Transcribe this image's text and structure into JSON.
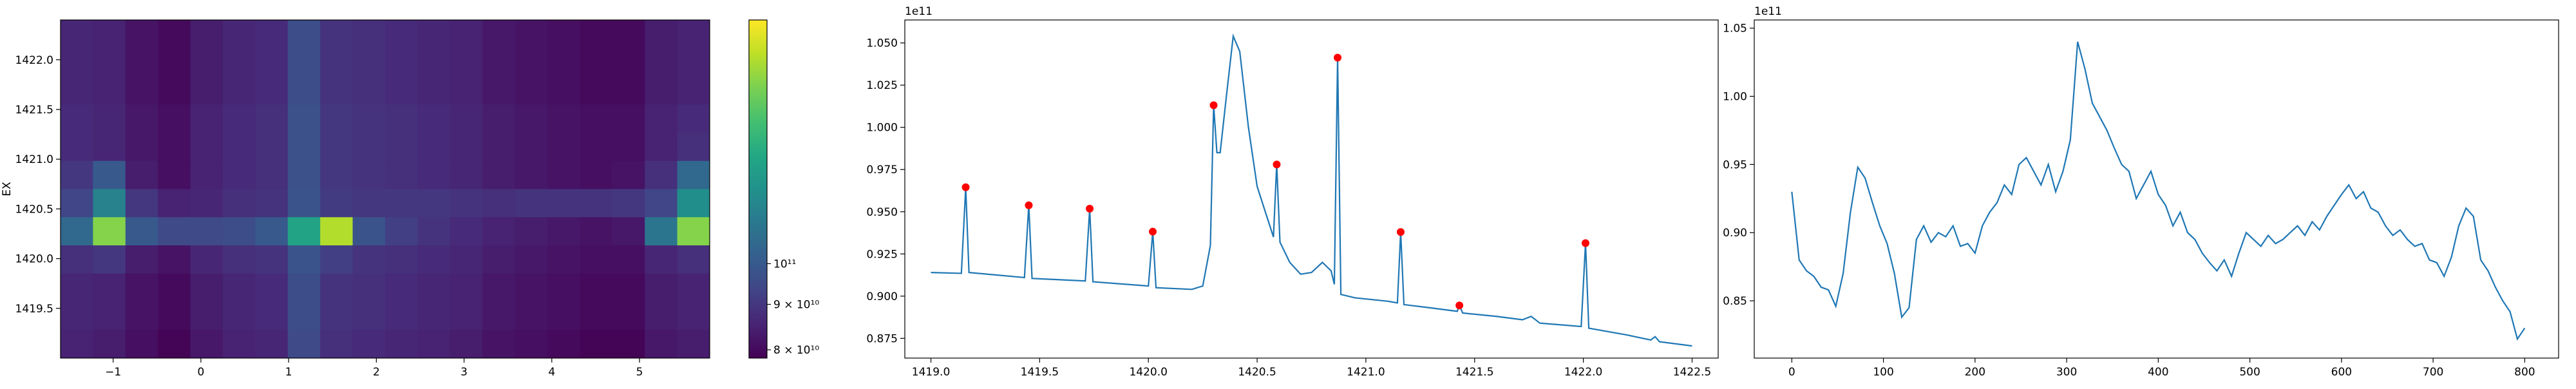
{
  "chart_data": [
    {
      "type": "heatmap",
      "ylabel": "EX",
      "xlim": [
        -1.6,
        5.8
      ],
      "ylim": [
        1419.0,
        1422.4
      ],
      "xticks": [
        {
          "value": -1,
          "label": "−1"
        },
        0,
        1,
        2,
        3,
        4,
        5
      ],
      "yticks": [
        1419.5,
        {
          "value": 1420,
          "label": "1420.0"
        },
        1420.5,
        {
          "value": 1421,
          "label": "1421.0"
        },
        1421.5,
        {
          "value": 1422,
          "label": "1422.0"
        }
      ],
      "z": [
        [
          86000000000.0,
          85000000000.0,
          82000000000.0,
          80000000000.0,
          84000000000.0,
          86000000000.0,
          87000000000.0,
          96000000000.0,
          89000000000.0,
          88000000000.0,
          87000000000.0,
          86000000000.0,
          85000000000.0,
          83000000000.0,
          82000000000.0,
          81000000000.0,
          80000000000.0,
          80000000000.0,
          84000000000.0,
          85000000000.0
        ],
        [
          86000000000.0,
          85000000000.0,
          82000000000.0,
          80000000000.0,
          84000000000.0,
          86000000000.0,
          87000000000.0,
          96000000000.0,
          89000000000.0,
          88000000000.0,
          87000000000.0,
          86000000000.0,
          85000000000.0,
          83000000000.0,
          82000000000.0,
          81000000000.0,
          80000000000.0,
          80000000000.0,
          84000000000.0,
          85000000000.0
        ],
        [
          86000000000.0,
          85000000000.0,
          82000000000.0,
          80000000000.0,
          84000000000.0,
          86000000000.0,
          87000000000.0,
          96000000000.0,
          89000000000.0,
          88000000000.0,
          87000000000.0,
          86000000000.0,
          85000000000.0,
          83000000000.0,
          82000000000.0,
          81000000000.0,
          80000000000.0,
          80000000000.0,
          84000000000.0,
          85000000000.0
        ],
        [
          87000000000.0,
          86000000000.0,
          83000000000.0,
          81000000000.0,
          85000000000.0,
          87000000000.0,
          88000000000.0,
          97000000000.0,
          90000000000.0,
          89000000000.0,
          88000000000.0,
          87000000000.0,
          86000000000.0,
          84000000000.0,
          83000000000.0,
          82000000000.0,
          81000000000.0,
          81000000000.0,
          85000000000.0,
          87000000000.0
        ],
        [
          87000000000.0,
          86000000000.0,
          83000000000.0,
          81000000000.0,
          85000000000.0,
          87000000000.0,
          88000000000.0,
          97000000000.0,
          90000000000.0,
          89000000000.0,
          88000000000.0,
          87000000000.0,
          86000000000.0,
          84000000000.0,
          83000000000.0,
          82000000000.0,
          81000000000.0,
          81000000000.0,
          85000000000.0,
          88000000000.0
        ],
        [
          90000000000.0,
          100000000000.0,
          84000000000.0,
          81000000000.0,
          85000000000.0,
          87000000000.0,
          88000000000.0,
          97000000000.0,
          90000000000.0,
          89000000000.0,
          88000000000.0,
          87000000000.0,
          86000000000.0,
          84000000000.0,
          83000000000.0,
          82000000000.0,
          81000000000.0,
          82000000000.0,
          88000000000.0,
          105000000000.0
        ],
        [
          94000000000.0,
          115000000000.0,
          90000000000.0,
          85000000000.0,
          86000000000.0,
          88000000000.0,
          89000000000.0,
          98000000000.0,
          91000000000.0,
          90000000000.0,
          90000000000.0,
          90000000000.0,
          89000000000.0,
          88000000000.0,
          89000000000.0,
          89000000000.0,
          89000000000.0,
          90000000000.0,
          94000000000.0,
          120000000000.0
        ],
        [
          105000000000.0,
          160000000000.0,
          100000000000.0,
          95000000000.0,
          95000000000.0,
          96000000000.0,
          100000000000.0,
          130000000000.0,
          170000000000.0,
          98000000000.0,
          92000000000.0,
          89000000000.0,
          87000000000.0,
          85000000000.0,
          84000000000.0,
          83000000000.0,
          82000000000.0,
          83000000000.0,
          110000000000.0,
          160000000000.0
        ],
        [
          88000000000.0,
          90000000000.0,
          84000000000.0,
          82000000000.0,
          86000000000.0,
          88000000000.0,
          89000000000.0,
          98000000000.0,
          92000000000.0,
          89000000000.0,
          88000000000.0,
          87000000000.0,
          86000000000.0,
          84000000000.0,
          83000000000.0,
          82000000000.0,
          81000000000.0,
          81000000000.0,
          86000000000.0,
          88000000000.0
        ],
        [
          86000000000.0,
          85000000000.0,
          82000000000.0,
          80000000000.0,
          84000000000.0,
          86000000000.0,
          87000000000.0,
          96000000000.0,
          89000000000.0,
          88000000000.0,
          87000000000.0,
          86000000000.0,
          85000000000.0,
          83000000000.0,
          82000000000.0,
          81000000000.0,
          80000000000.0,
          80000000000.0,
          84000000000.0,
          85000000000.0
        ],
        [
          86000000000.0,
          85000000000.0,
          82000000000.0,
          80000000000.0,
          84000000000.0,
          86000000000.0,
          87000000000.0,
          96000000000.0,
          89000000000.0,
          88000000000.0,
          87000000000.0,
          86000000000.0,
          85000000000.0,
          83000000000.0,
          82000000000.0,
          81000000000.0,
          80000000000.0,
          80000000000.0,
          84000000000.0,
          85000000000.0
        ],
        [
          85000000000.0,
          84000000000.0,
          81000000000.0,
          79000000000.0,
          83000000000.0,
          85000000000.0,
          86000000000.0,
          95000000000.0,
          88000000000.0,
          87000000000.0,
          86000000000.0,
          85000000000.0,
          84000000000.0,
          82000000000.0,
          81000000000.0,
          80000000000.0,
          79000000000.0,
          79000000000.0,
          83000000000.0,
          84000000000.0
        ]
      ],
      "colorbar": {
        "scale": "log",
        "colormap": "viridis",
        "clim": [
          78300000000.0,
          188000000000.0
        ],
        "ticks": [
          {
            "value": 80000000000.0,
            "label": "8 × 10¹⁰"
          },
          {
            "value": 90000000000.0,
            "label": "9 × 10¹⁰"
          },
          {
            "value": 100000000000.0,
            "label": "10¹¹"
          }
        ]
      }
    },
    {
      "type": "line",
      "offset_text": "1e11",
      "xlim": [
        1418.88,
        1422.62
      ],
      "ylim": [
        0.8633,
        1.0636
      ],
      "xticks": [
        {
          "value": 1419,
          "label": "1419.0"
        },
        1419.5,
        {
          "value": 1420,
          "label": "1420.0"
        },
        1420.5,
        {
          "value": 1421,
          "label": "1421.0"
        },
        1421.5,
        {
          "value": 1422,
          "label": "1422.0"
        },
        1422.5
      ],
      "yticks": [
        0.875,
        {
          "value": 0.9,
          "label": "0.900"
        },
        0.925,
        {
          "value": 0.95,
          "label": "0.950"
        },
        0.975,
        {
          "value": 1,
          "label": "1.000"
        },
        1.025,
        {
          "value": 1.05,
          "label": "1.050"
        }
      ],
      "series": [
        {
          "color": "#1f77b4",
          "style": "line",
          "x": [
            1419.0,
            1419.14,
            1419.16,
            1419.175,
            1419.43,
            1419.45,
            1419.465,
            1419.71,
            1419.73,
            1419.745,
            1420.0,
            1420.02,
            1420.035,
            1420.2,
            1420.25,
            1420.285,
            1420.3,
            1420.315,
            1420.33,
            1420.36,
            1420.39,
            1420.42,
            1420.46,
            1420.5,
            1420.55,
            1420.575,
            1420.59,
            1420.605,
            1420.65,
            1420.7,
            1420.75,
            1420.8,
            1420.84,
            1420.855,
            1420.87,
            1420.885,
            1420.95,
            1421.1,
            1421.145,
            1421.16,
            1421.175,
            1421.3,
            1421.42,
            1421.43,
            1421.445,
            1421.6,
            1421.72,
            1421.76,
            1421.8,
            1421.99,
            1422.01,
            1422.025,
            1422.2,
            1422.31,
            1422.33,
            1422.35,
            1422.5
          ],
          "values": [
            0.914,
            0.9135,
            0.9645,
            0.914,
            0.911,
            0.9538,
            0.9105,
            0.909,
            0.9518,
            0.9085,
            0.906,
            0.9382,
            0.905,
            0.904,
            0.906,
            0.93,
            1.0131,
            0.985,
            0.985,
            1.02,
            1.054,
            1.045,
            1.0,
            0.965,
            0.945,
            0.935,
            0.978,
            0.932,
            0.92,
            0.913,
            0.914,
            0.92,
            0.915,
            0.907,
            1.0413,
            0.901,
            0.899,
            0.897,
            0.896,
            0.938,
            0.895,
            0.893,
            0.891,
            0.8945,
            0.89,
            0.888,
            0.886,
            0.888,
            0.884,
            0.882,
            0.9314,
            0.881,
            0.877,
            0.874,
            0.876,
            0.873,
            0.8705
          ]
        },
        {
          "color": "red",
          "style": "markers",
          "x": [
            1419.16,
            1419.45,
            1419.73,
            1420.02,
            1420.3,
            1420.59,
            1420.87,
            1421.16,
            1421.43,
            1422.01
          ],
          "values": [
            0.9645,
            0.9538,
            0.9518,
            0.9382,
            1.0131,
            0.978,
            1.0413,
            0.938,
            0.8945,
            0.9314
          ]
        }
      ]
    },
    {
      "type": "line",
      "offset_text": "1e11",
      "xlim": [
        -41,
        837
      ],
      "ylim": [
        0.808,
        1.056
      ],
      "xticks": [
        0,
        100,
        200,
        300,
        400,
        500,
        600,
        700,
        800
      ],
      "yticks": [
        0.85,
        {
          "value": 0.9,
          "label": "0.90"
        },
        0.95,
        {
          "value": 1,
          "label": "1.00"
        },
        1.05
      ],
      "series": [
        {
          "color": "#1f77b4",
          "style": "line",
          "x": [
            0,
            8,
            16,
            24,
            32,
            40,
            48,
            56,
            64,
            72,
            80,
            88,
            96,
            104,
            112,
            120,
            128,
            136,
            144,
            152,
            160,
            168,
            176,
            184,
            192,
            200,
            208,
            216,
            224,
            232,
            240,
            248,
            256,
            264,
            272,
            280,
            288,
            296,
            304,
            312,
            320,
            328,
            336,
            344,
            352,
            360,
            368,
            376,
            384,
            392,
            400,
            408,
            416,
            424,
            432,
            440,
            448,
            456,
            464,
            472,
            480,
            488,
            496,
            504,
            512,
            520,
            528,
            536,
            544,
            552,
            560,
            568,
            576,
            584,
            592,
            600,
            608,
            616,
            624,
            632,
            640,
            648,
            656,
            664,
            672,
            680,
            688,
            696,
            704,
            712,
            720,
            728,
            736,
            744,
            752,
            760,
            768,
            776,
            784,
            792,
            800
          ],
          "values": [
            0.93,
            0.88,
            0.872,
            0.868,
            0.86,
            0.858,
            0.846,
            0.87,
            0.915,
            0.948,
            0.94,
            0.922,
            0.905,
            0.892,
            0.87,
            0.838,
            0.845,
            0.895,
            0.905,
            0.893,
            0.9,
            0.897,
            0.905,
            0.89,
            0.892,
            0.885,
            0.905,
            0.915,
            0.922,
            0.935,
            0.928,
            0.95,
            0.955,
            0.945,
            0.935,
            0.95,
            0.93,
            0.945,
            0.968,
            1.04,
            1.02,
            0.995,
            0.985,
            0.975,
            0.962,
            0.95,
            0.945,
            0.925,
            0.935,
            0.945,
            0.928,
            0.92,
            0.905,
            0.915,
            0.9,
            0.895,
            0.885,
            0.878,
            0.872,
            0.88,
            0.868,
            0.885,
            0.9,
            0.895,
            0.89,
            0.898,
            0.892,
            0.895,
            0.9,
            0.905,
            0.898,
            0.908,
            0.902,
            0.912,
            0.92,
            0.928,
            0.935,
            0.925,
            0.93,
            0.918,
            0.915,
            0.905,
            0.898,
            0.902,
            0.895,
            0.89,
            0.892,
            0.88,
            0.878,
            0.868,
            0.882,
            0.905,
            0.918,
            0.912,
            0.88,
            0.872,
            0.86,
            0.85,
            0.842,
            0.822,
            0.83
          ]
        }
      ]
    }
  ]
}
